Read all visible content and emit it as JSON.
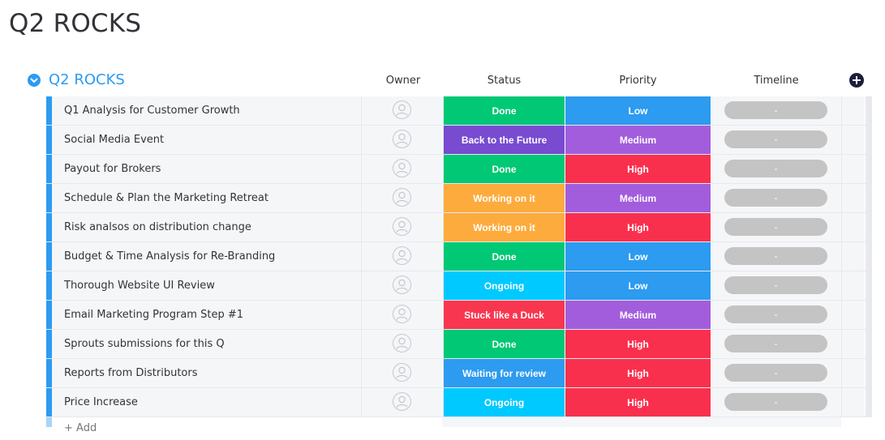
{
  "page": {
    "title": "Q2 ROCKS"
  },
  "group": {
    "title": "Q2 ROCKS",
    "color": "#2c9bf0",
    "columns": {
      "owner": "Owner",
      "status": "Status",
      "priority": "Priority",
      "timeline": "Timeline"
    },
    "add_column_icon": "plus-circle-icon",
    "add_item_placeholder": "+ Add"
  },
  "colors": {
    "Done": "#00c875",
    "Back to the Future": "#784bd1",
    "Working on it": "#fdab3d",
    "Ongoing": "#00c9ff",
    "Stuck like a Duck": "#f9364f",
    "Waiting for review": "#2c9bf0",
    "Low": "#2c9bf0",
    "Medium": "#a25ddc",
    "High": "#f9304d",
    "timeline_empty": "#c4c4c4"
  },
  "rows": [
    {
      "name": "Q1 Analysis for Customer Growth",
      "status": "Done",
      "priority": "Low",
      "timeline": "-"
    },
    {
      "name": "Social Media Event",
      "status": "Back to the Future",
      "priority": "Medium",
      "timeline": "-"
    },
    {
      "name": "Payout for Brokers",
      "status": "Done",
      "priority": "High",
      "timeline": "-"
    },
    {
      "name": "Schedule & Plan the Marketing Retreat",
      "status": "Working on it",
      "priority": "Medium",
      "timeline": "-"
    },
    {
      "name": "Risk analsos on distribution change",
      "status": "Working on it",
      "priority": "High",
      "timeline": "-"
    },
    {
      "name": "Budget & Time Analysis for Re-Branding",
      "status": "Done",
      "priority": "Low",
      "timeline": "-"
    },
    {
      "name": "Thorough Website UI Review",
      "status": "Ongoing",
      "priority": "Low",
      "timeline": "-"
    },
    {
      "name": "Email Marketing Program Step #1",
      "status": "Stuck like a Duck",
      "priority": "Medium",
      "timeline": "-"
    },
    {
      "name": "Sprouts submissions for this Q",
      "status": "Done",
      "priority": "High",
      "timeline": "-"
    },
    {
      "name": "Reports from Distributors",
      "status": "Waiting for review",
      "priority": "High",
      "timeline": "-"
    },
    {
      "name": "Price Increase",
      "status": "Ongoing",
      "priority": "High",
      "timeline": "-"
    }
  ]
}
